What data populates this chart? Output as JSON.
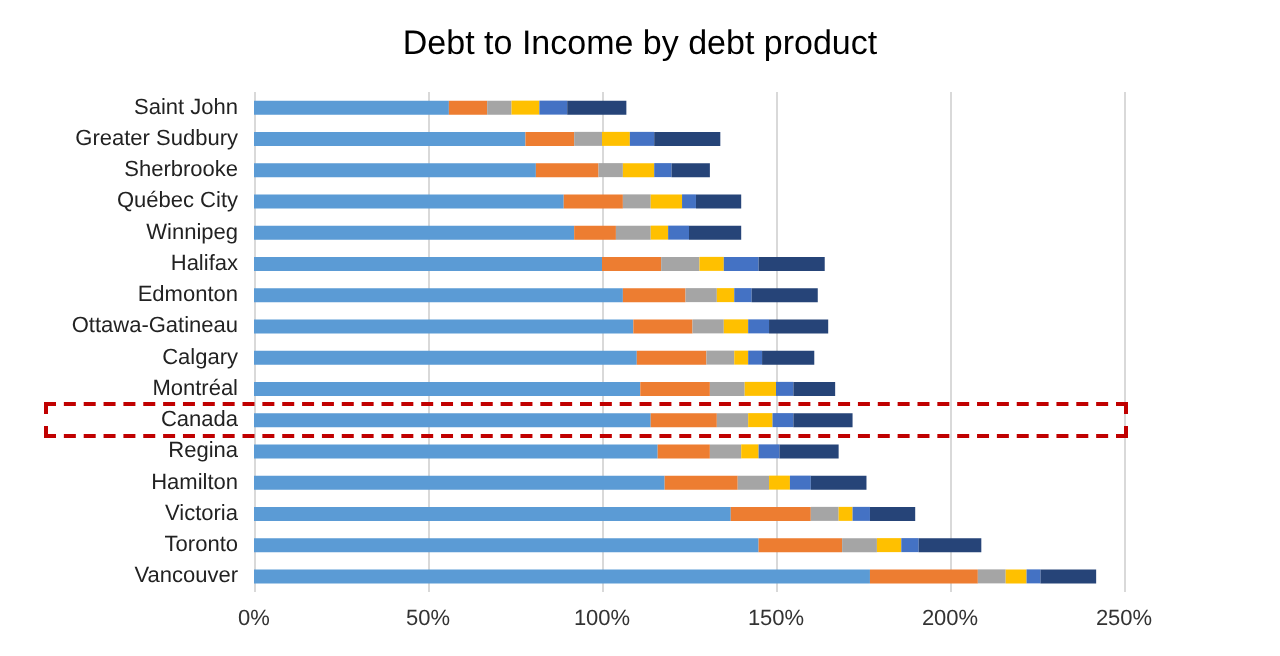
{
  "chart_data": {
    "type": "bar",
    "title": "Debt to Income by debt product",
    "orientation": "horizontal",
    "stacked": true,
    "categories": [
      "Saint John",
      "Greater Sudbury",
      "Sherbrooke",
      "Québec City",
      "Winnipeg",
      "Halifax",
      "Edmonton",
      "Ottawa-Gatineau",
      "Calgary",
      "Montréal",
      "Canada",
      "Regina",
      "Hamilton",
      "Victoria",
      "Toronto",
      "Vancouver"
    ],
    "series": [
      {
        "color": "#5b9bd5",
        "values": [
          56,
          78,
          81,
          89,
          92,
          100,
          106,
          109,
          110,
          111,
          114,
          116,
          118,
          137,
          145,
          177
        ]
      },
      {
        "color": "#ed7d31",
        "values": [
          11,
          14,
          18,
          17,
          12,
          17,
          18,
          17,
          20,
          20,
          19,
          15,
          21,
          23,
          24,
          31
        ]
      },
      {
        "color": "#a5a5a5",
        "values": [
          7,
          8,
          7,
          8,
          10,
          11,
          9,
          9,
          8,
          10,
          9,
          9,
          9,
          8,
          10,
          8
        ]
      },
      {
        "color": "#ffc000",
        "values": [
          8,
          8,
          9,
          9,
          5,
          7,
          5,
          7,
          4,
          9,
          7,
          5,
          6,
          4,
          7,
          6
        ]
      },
      {
        "color": "#4472c4",
        "values": [
          8,
          7,
          5,
          4,
          6,
          10,
          5,
          6,
          4,
          5,
          6,
          6,
          6,
          5,
          5,
          4
        ]
      },
      {
        "color": "#264478",
        "values": [
          17,
          19,
          11,
          13,
          15,
          19,
          19,
          17,
          15,
          12,
          17,
          17,
          16,
          13,
          18,
          16
        ]
      }
    ],
    "xlim": [
      0,
      250
    ],
    "xticks": [
      {
        "value": 0,
        "label": "0%"
      },
      {
        "value": 50,
        "label": "50%"
      },
      {
        "value": 100,
        "label": "100%"
      },
      {
        "value": 150,
        "label": "150%"
      },
      {
        "value": 200,
        "label": "200%"
      },
      {
        "value": 250,
        "label": "250%"
      }
    ],
    "grid": "x"
  }
}
